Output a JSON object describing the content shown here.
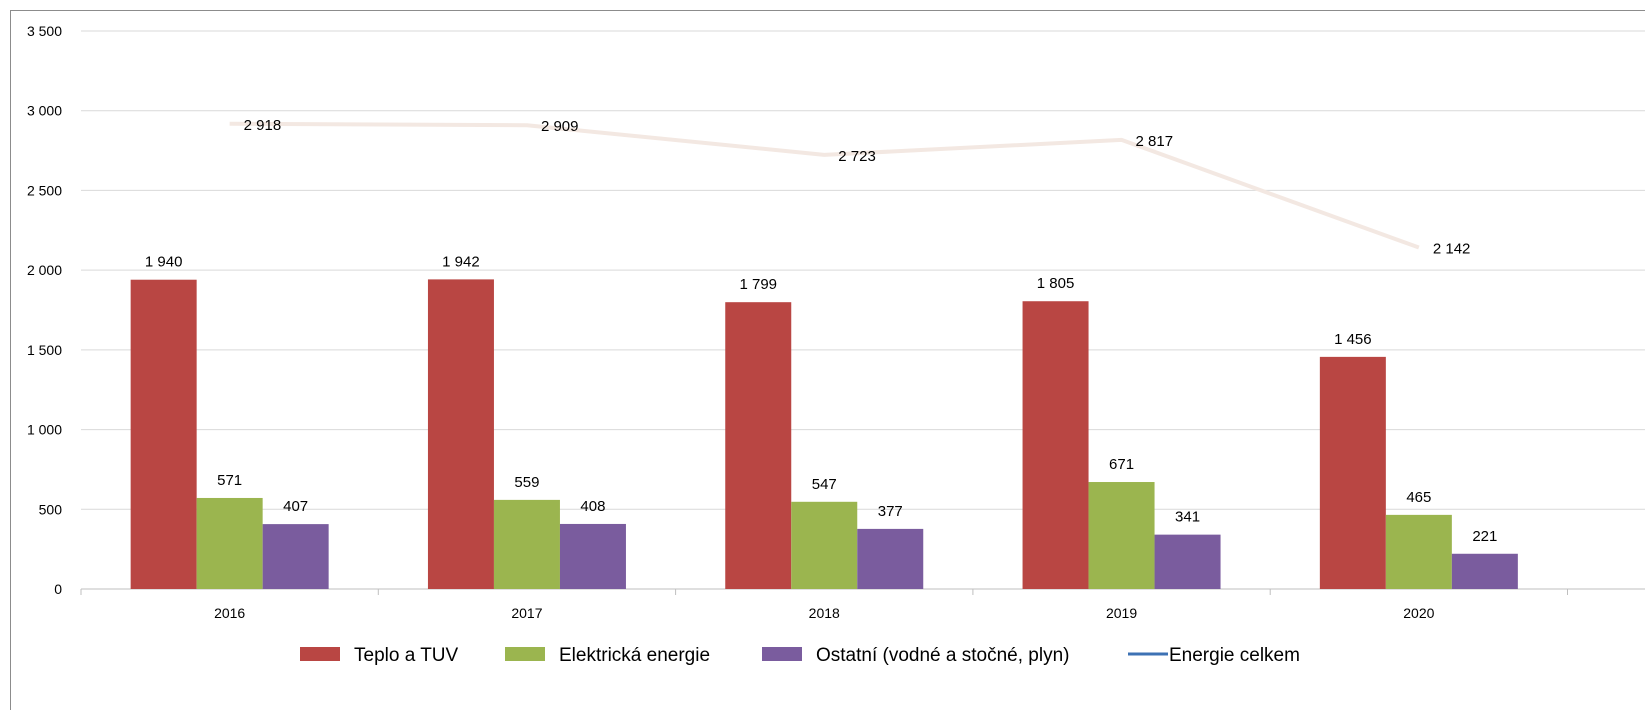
{
  "chart_data": {
    "type": "bar",
    "categories": [
      "2016",
      "2017",
      "2018",
      "2019",
      "2020"
    ],
    "series": [
      {
        "name": "Teplo a TUV",
        "type": "bar",
        "color": "#b94643",
        "values": [
          1940,
          1942,
          1799,
          1805,
          1456
        ],
        "labels": [
          "1 940",
          "1 942",
          "1 799",
          "1 805",
          "1 456"
        ]
      },
      {
        "name": "Elektrická energie",
        "type": "bar",
        "color": "#9bb54f",
        "values": [
          571,
          559,
          547,
          671,
          465
        ],
        "labels": [
          "571",
          "559",
          "547",
          "671",
          "465"
        ]
      },
      {
        "name": "Ostatní (vodné a stočné, plyn)",
        "type": "bar",
        "color": "#7a5c9e",
        "values": [
          407,
          408,
          377,
          341,
          221
        ],
        "labels": [
          "407",
          "408",
          "377",
          "341",
          "221"
        ]
      },
      {
        "name": "Energie celkem",
        "type": "line",
        "color": "#f3e8e2",
        "legend_color": "#3d72b4",
        "values": [
          2918,
          2909,
          2723,
          2817,
          2142
        ],
        "labels": [
          "2 918",
          "2 909",
          "2 723",
          "2 817",
          "2 142"
        ]
      }
    ],
    "ylim": [
      0,
      3500
    ],
    "yticks": [
      0,
      500,
      1000,
      1500,
      2000,
      2500,
      3000,
      3500
    ],
    "ytick_labels": [
      "0",
      "500",
      "1 000",
      "1 500",
      "2 000",
      "2 500",
      "3 000",
      "3 500"
    ],
    "grid": true,
    "legend_position": "bottom",
    "colors": {
      "grid": "#d9d9d9",
      "axis": "#bfbfbf"
    }
  }
}
